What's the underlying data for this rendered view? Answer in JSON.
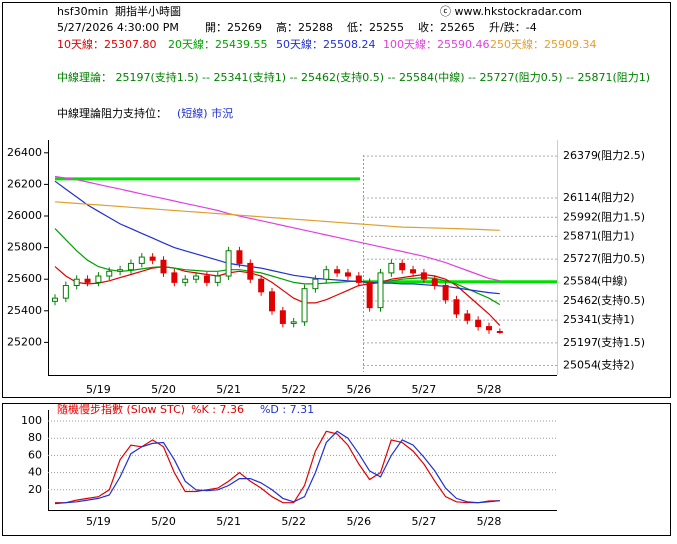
{
  "header": {
    "symbol": "hsf30min",
    "title": "期指半小時圖",
    "copyright": "ⓒ www.hkstockradar.com",
    "datetime": "5/27/2026 4:30:00 PM",
    "separator": "：",
    "fields": [
      {
        "label": "開",
        "value": 25269
      },
      {
        "label": "高",
        "value": 25288
      },
      {
        "label": "低",
        "value": 25255
      },
      {
        "label": "收",
        "value": 25265
      },
      {
        "label": "升/跌",
        "value": -4
      }
    ],
    "theory": "中線理論： 25197(支持1.5) -- 25341(支持1) -- 25462(支持0.5) -- 25584(中線) -- 25727(阻力0.5) -- 25871(阻力1)",
    "levels_title": "中線理論阻力支持位：",
    "levels_mode": "(短線) 市況"
  },
  "chart_data": [
    {
      "type": "candlestick",
      "categories": [
        null,
        null,
        null,
        null,
        "5/19",
        null,
        null,
        null,
        null,
        null,
        "5/20",
        null,
        null,
        null,
        null,
        null,
        "5/21",
        null,
        null,
        null,
        null,
        null,
        "5/22",
        null,
        null,
        null,
        null,
        null,
        "5/26",
        null,
        null,
        null,
        null,
        null,
        "5/27",
        null,
        null,
        null,
        null,
        null,
        "5/28",
        null
      ],
      "open": [
        25460,
        25480,
        25560,
        25600,
        25580,
        25620,
        25650,
        25660,
        25700,
        25740,
        25720,
        25640,
        25580,
        25600,
        25620,
        25580,
        25620,
        25780,
        25700,
        25600,
        25520,
        25400,
        25320,
        25330,
        25540,
        25600,
        25660,
        25640,
        25620,
        25580,
        25420,
        25640,
        25700,
        25660,
        25640,
        25600,
        25560,
        25470,
        25380,
        25340,
        25300,
        25269
      ],
      "high": [
        25505,
        25585,
        25625,
        25625,
        25645,
        25675,
        25685,
        25725,
        25765,
        25765,
        25745,
        25665,
        25625,
        25645,
        25645,
        25645,
        25805,
        25805,
        25725,
        25625,
        25545,
        25425,
        25355,
        25565,
        25625,
        25685,
        25685,
        25665,
        25645,
        25605,
        25665,
        25725,
        25725,
        25685,
        25665,
        25625,
        25585,
        25495,
        25405,
        25365,
        25325,
        25288
      ],
      "low": [
        25435,
        25455,
        25535,
        25555,
        25555,
        25595,
        25625,
        25635,
        25675,
        25695,
        25615,
        25555,
        25555,
        25575,
        25555,
        25555,
        25595,
        25675,
        25575,
        25495,
        25375,
        25295,
        25295,
        25305,
        25515,
        25575,
        25615,
        25595,
        25555,
        25395,
        25395,
        25615,
        25635,
        25615,
        25575,
        25535,
        25445,
        25355,
        25315,
        25275,
        25255,
        25255
      ],
      "close": [
        25480,
        25560,
        25600,
        25580,
        25620,
        25650,
        25660,
        25700,
        25740,
        25720,
        25640,
        25580,
        25600,
        25620,
        25580,
        25620,
        25780,
        25700,
        25600,
        25520,
        25400,
        25320,
        25330,
        25540,
        25600,
        25660,
        25640,
        25620,
        25580,
        25420,
        25640,
        25700,
        25660,
        25640,
        25600,
        25560,
        25470,
        25380,
        25340,
        25300,
        25280,
        25265
      ],
      "up_color": "#008000",
      "down_color": "#e00000",
      "series": [
        {
          "name": "10天線",
          "color": "#e00000",
          "last_label": "25307.80",
          "values": [
            25680,
            25620,
            25580,
            25570,
            25575,
            25590,
            25610,
            25630,
            25650,
            25670,
            25680,
            25670,
            25650,
            25640,
            25630,
            25620,
            25640,
            25650,
            25640,
            25620,
            25580,
            25530,
            25480,
            25450,
            25450,
            25470,
            25500,
            25530,
            25560,
            25570,
            25580,
            25600,
            25610,
            25620,
            25630,
            25620,
            25600,
            25560,
            25500,
            25440,
            25380,
            25307.8
          ]
        },
        {
          "name": "20天線",
          "color": "#00a000",
          "last_label": "25439.55",
          "values": [
            25920,
            25850,
            25780,
            25720,
            25680,
            25660,
            25650,
            25655,
            25665,
            25675,
            25680,
            25670,
            25660,
            25655,
            25650,
            25650,
            25660,
            25660,
            25650,
            25640,
            25620,
            25600,
            25580,
            25570,
            25570,
            25575,
            25580,
            25585,
            25590,
            25580,
            25580,
            25590,
            25600,
            25605,
            25610,
            25605,
            25590,
            25570,
            25540,
            25510,
            25480,
            25439.55
          ]
        },
        {
          "name": "50天線",
          "color": "#2030d0",
          "last_label": "25508.24",
          "values": [
            26220,
            26170,
            26120,
            26070,
            26030,
            25990,
            25950,
            25920,
            25890,
            25860,
            25830,
            25800,
            25780,
            25760,
            25740,
            25720,
            25700,
            25690,
            25680,
            25670,
            25655,
            25640,
            25625,
            25615,
            25605,
            25600,
            25595,
            25590,
            25585,
            25580,
            25575,
            25575,
            25570,
            25570,
            25565,
            25560,
            25555,
            25545,
            25535,
            25525,
            25515,
            25508.24
          ]
        },
        {
          "name": "100天線",
          "color": "#e040e0",
          "last_label": "25590.46",
          "values": [
            26250,
            26240,
            26230,
            26215,
            26200,
            26185,
            26170,
            26155,
            26140,
            26125,
            26110,
            26095,
            26080,
            26065,
            26050,
            26035,
            26015,
            26000,
            25985,
            25970,
            25955,
            25940,
            25925,
            25910,
            25895,
            25880,
            25865,
            25850,
            25835,
            25820,
            25805,
            25790,
            25775,
            25760,
            25745,
            25725,
            25705,
            25680,
            25655,
            25630,
            25605,
            25590.46
          ]
        },
        {
          "name": "250天線",
          "color": "#e0a030",
          "last_label": "25909.34",
          "values": [
            26090,
            26085,
            26080,
            26075,
            26070,
            26065,
            26060,
            26055,
            26050,
            26045,
            26040,
            26035,
            26030,
            26025,
            26020,
            26015,
            26010,
            26005,
            26000,
            25995,
            25990,
            25985,
            25980,
            25975,
            25970,
            25965,
            25960,
            25955,
            25950,
            25945,
            25940,
            25935,
            25930,
            25928,
            25926,
            25924,
            25922,
            25920,
            25918,
            25915,
            25912,
            25909.34
          ]
        }
      ],
      "levels": [
        {
          "value": 26379,
          "name": "(阻力2.5)"
        },
        {
          "value": 26114,
          "name": "(阻力2)"
        },
        {
          "value": 25992,
          "name": "(阻力1.5)"
        },
        {
          "value": 25871,
          "name": "(阻力1)"
        },
        {
          "value": 25727,
          "name": "(阻力0.5)"
        },
        {
          "value": 25584,
          "name": "(中線)"
        },
        {
          "value": 25462,
          "name": "(支持0.5)"
        },
        {
          "value": 25341,
          "name": "(支持1)"
        },
        {
          "value": 25197,
          "name": "(支持1.5)"
        },
        {
          "value": 25054,
          "name": "(支持2)"
        }
      ],
      "prev_mid": 26235,
      "level_color": "#00e000",
      "ylim": [
        25000,
        26500
      ],
      "yticks": [
        25200,
        25400,
        25600,
        25800,
        26000,
        26200,
        26400
      ]
    },
    {
      "type": "line",
      "title": "隨機慢步指數 (Slow STC)",
      "separator": " : ",
      "categories": [
        null,
        null,
        null,
        null,
        "5/19",
        null,
        null,
        null,
        null,
        null,
        "5/20",
        null,
        null,
        null,
        null,
        null,
        "5/21",
        null,
        null,
        null,
        null,
        null,
        "5/22",
        null,
        null,
        null,
        null,
        null,
        "5/26",
        null,
        null,
        null,
        null,
        null,
        "5/27",
        null,
        null,
        null,
        null,
        null,
        "5/28",
        null
      ],
      "series": [
        {
          "name": "%K",
          "color": "#e00000",
          "values": [
            5,
            5,
            8,
            10,
            12,
            20,
            55,
            72,
            70,
            78,
            70,
            40,
            18,
            18,
            20,
            22,
            30,
            40,
            30,
            22,
            12,
            5,
            5,
            25,
            65,
            88,
            85,
            72,
            50,
            32,
            40,
            78,
            75,
            65,
            50,
            30,
            12,
            6,
            5,
            5,
            7,
            7.36
          ]
        },
        {
          "name": "%D",
          "color": "#2030d0",
          "values": [
            4,
            5,
            6,
            8,
            10,
            14,
            35,
            62,
            70,
            74,
            75,
            55,
            30,
            20,
            19,
            20,
            25,
            33,
            33,
            28,
            20,
            10,
            6,
            12,
            40,
            75,
            88,
            80,
            62,
            42,
            35,
            60,
            78,
            72,
            58,
            42,
            22,
            10,
            6,
            5,
            6,
            7.31
          ]
        }
      ],
      "ylim": [
        0,
        100
      ],
      "yticks": [
        20,
        40,
        60,
        80,
        100
      ],
      "grid": true
    }
  ]
}
